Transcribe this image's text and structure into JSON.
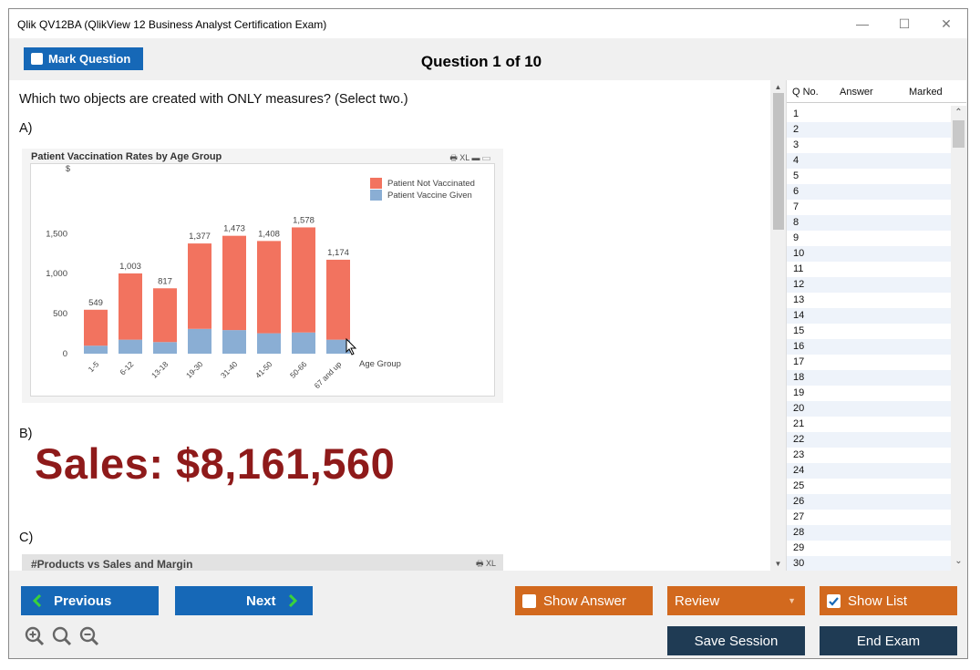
{
  "window": {
    "title": "Qlik QV12BA (QlikView 12 Business Analyst Certification Exam)",
    "controls": {
      "minimize": "—",
      "maximize": "☐",
      "close": "✕"
    }
  },
  "header": {
    "mark_label": "Mark Question",
    "question_counter": "Question 1 of 10"
  },
  "question": {
    "text": "Which two objects are created with ONLY measures? (Select two.)",
    "options": [
      {
        "label": "A)"
      },
      {
        "label": "B)"
      },
      {
        "label": "C)"
      }
    ]
  },
  "option_a_chart": {
    "title": "Patient Vaccination Rates by Age Group",
    "icons_text": "🖶 XL ▬ ▭"
  },
  "chart_data": {
    "type": "bar",
    "title": "Patient Vaccination Rates by Age Group",
    "ylabel": "$",
    "xlabel": "Age Group",
    "ylim": [
      0,
      1800
    ],
    "yticks": [
      "0",
      "500",
      "1,000",
      "1,500"
    ],
    "categories": [
      "1-5",
      "6-12",
      "13-18",
      "19-30",
      "31-40",
      "41-50",
      "50-66",
      "67 and up"
    ],
    "totals_labels": [
      "549",
      "1,003",
      "817",
      "1,377",
      "1,473",
      "1,408",
      "1,578",
      "1,174"
    ],
    "series": [
      {
        "name": "Patient Vaccine Given",
        "color": "#8aaed4",
        "values": [
          100,
          175,
          145,
          310,
          295,
          255,
          265,
          175
        ]
      },
      {
        "name": "Patient Not Vaccinated",
        "color": "#f2735f",
        "values": [
          449,
          828,
          672,
          1067,
          1178,
          1153,
          1313,
          999
        ]
      }
    ],
    "stacked": true,
    "legend_position": "top-right"
  },
  "option_b": {
    "text": "Sales: $8,161,560"
  },
  "option_c_chart": {
    "title": "#Products vs Sales and Margin",
    "icons_text": "🖶 XL"
  },
  "qlist": {
    "headers": {
      "no": "Q No.",
      "answer": "Answer",
      "marked": "Marked"
    },
    "rows": [
      "1",
      "2",
      "3",
      "4",
      "5",
      "6",
      "7",
      "8",
      "9",
      "10",
      "11",
      "12",
      "13",
      "14",
      "15",
      "16",
      "17",
      "18",
      "19",
      "20",
      "21",
      "22",
      "23",
      "24",
      "25",
      "26",
      "27",
      "28",
      "29",
      "30"
    ]
  },
  "footer": {
    "previous": "Previous",
    "next": "Next",
    "show_answer": "Show Answer",
    "review": "Review",
    "show_list": "Show List",
    "save_session": "Save Session",
    "end_exam": "End Exam",
    "show_list_checked": true
  },
  "colors": {
    "primary_blue": "#1668b7",
    "orange": "#d2691e",
    "dark_navy": "#1f3b54",
    "sales_red": "#8e1a1a"
  }
}
